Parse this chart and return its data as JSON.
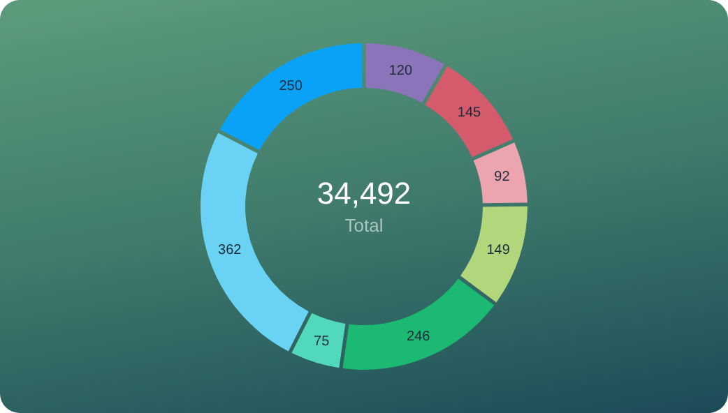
{
  "chart_data": {
    "type": "donut",
    "categories": [
      null,
      null,
      null,
      null,
      null,
      null,
      null,
      null
    ],
    "values": [
      120,
      145,
      92,
      149,
      246,
      75,
      362,
      250
    ],
    "colors": [
      "#8b74b9",
      "#d35b6b",
      "#eca4ae",
      "#b2d67c",
      "#1cb972",
      "#52d8ba",
      "#6ad2f2",
      "#0aa2f6"
    ],
    "data_labels": true,
    "annotations": [
      "34,492",
      "Total"
    ]
  }
}
